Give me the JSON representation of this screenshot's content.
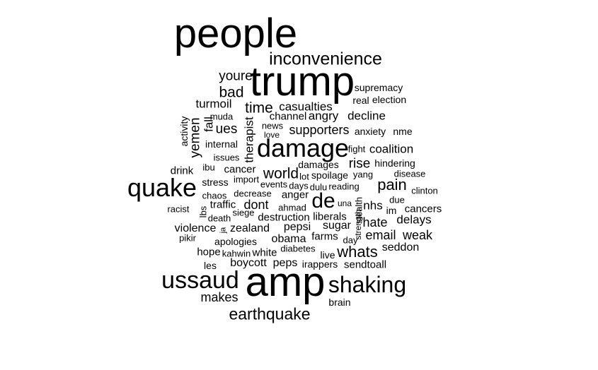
{
  "word_cloud": {
    "color": "#000000",
    "background": "#ffffff",
    "words": [
      "people",
      "trump",
      "inconvenience",
      "amp",
      "quake",
      "ussaud",
      "shaking",
      "earthquake",
      "damage",
      "de",
      "youre",
      "bad",
      "supremacy",
      "real",
      "election",
      "turmoil",
      "time",
      "casualties",
      "angry",
      "decline",
      "muda",
      "fall",
      "channel",
      "activity",
      "yemen",
      "ues",
      "supporters",
      "anxiety",
      "nme",
      "news",
      "love",
      "internal",
      "therapist",
      "fight",
      "coalition",
      "issues",
      "ibu",
      "damages",
      "hindering",
      "drink",
      "cancer",
      "world",
      "rise",
      "lot",
      "spoilage",
      "yang",
      "disease",
      "stress",
      "import",
      "events",
      "days",
      "dulu",
      "reading",
      "pain",
      "chaos",
      "decrease",
      "anger",
      "clinton",
      "racist",
      "traffic",
      "dont",
      "ahmad",
      "nhs",
      "due",
      "im",
      "cancers",
      "death",
      "siege",
      "destruction",
      "liberals",
      "una",
      "delays",
      "violence",
      "zealand",
      "pepsi",
      "sugar",
      "hate",
      "pikir",
      "apologies",
      "obama",
      "farms",
      "day",
      "email",
      "weak",
      "hope",
      "diabetes",
      "seddon",
      "kahwin",
      "white",
      "live",
      "whats",
      "les",
      "boycott",
      "peps",
      "irappers",
      "sendtoall",
      "makes",
      "brain",
      "lbs",
      "stealth",
      "ja",
      "strength"
    ]
  }
}
